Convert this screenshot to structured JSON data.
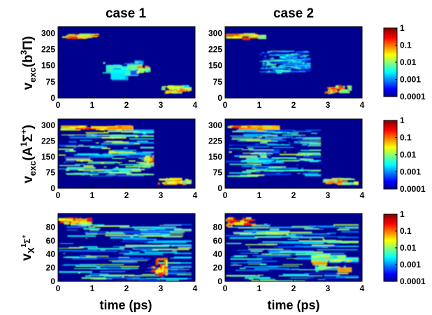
{
  "columns": [
    "case 1",
    "case 2"
  ],
  "xlabel": "time (ps)",
  "rows": [
    {
      "ylabel": {
        "main": "v",
        "sub": "exc",
        "paren_open": "(b",
        "sup": "3",
        "sym": "Π",
        "paren_close": ")"
      }
    },
    {
      "ylabel": {
        "main": "v",
        "sub": "exc",
        "paren_open": "(A",
        "sup": "1",
        "sym": "Σ",
        "sup2": "+",
        "paren_close": ")"
      }
    },
    {
      "ylabel": {
        "main": "v",
        "sub": "X",
        "sup": "1",
        "sym": "Σ",
        "sup2": "+"
      }
    }
  ],
  "colorbar": {
    "scale": "log",
    "colormap": "jet",
    "ticks": [
      "1",
      "0.1",
      "0.01",
      "0.001",
      "0.0001"
    ],
    "range": [
      0.0001,
      1
    ]
  },
  "chart_data": [
    {
      "type": "heatmap",
      "panel": "b3Pi case 1",
      "title": "case 1",
      "xlabel": "",
      "ylabel": "vexc(b3Π)",
      "xlim": [
        0,
        4
      ],
      "ylim": [
        0,
        330
      ],
      "xticks": [
        0,
        1,
        2,
        3,
        4
      ],
      "yticks": [
        0,
        75,
        150,
        225,
        300
      ],
      "features": [
        {
          "t": [
            0,
            1.2
          ],
          "v": [
            280,
            300
          ],
          "intensity": 0.05
        },
        {
          "t": [
            1.2,
            2.5
          ],
          "v": [
            100,
            175
          ],
          "intensity": 0.003
        },
        {
          "t": [
            2.3,
            2.7
          ],
          "v": [
            125,
            150
          ],
          "intensity": 0.03
        },
        {
          "t": [
            3.0,
            3.9
          ],
          "v": [
            30,
            60
          ],
          "intensity": 0.03
        }
      ]
    },
    {
      "type": "heatmap",
      "panel": "b3Pi case 2",
      "title": "case 2",
      "xlabel": "",
      "ylabel": "",
      "xlim": [
        0,
        4
      ],
      "ylim": [
        0,
        330
      ],
      "xticks": [
        0,
        1,
        2,
        3,
        4
      ],
      "yticks": [
        0,
        75,
        150,
        225,
        300
      ],
      "features": [
        {
          "t": [
            0,
            1.2
          ],
          "v": [
            280,
            300
          ],
          "intensity": 0.05
        },
        {
          "t": [
            1.0,
            2.5
          ],
          "v": [
            120,
            220
          ],
          "intensity": 0.002
        },
        {
          "t": [
            2.9,
            3.7
          ],
          "v": [
            30,
            60
          ],
          "intensity": 0.05
        }
      ]
    },
    {
      "type": "heatmap",
      "panel": "A1Sigma+ case 1",
      "title": "",
      "xlabel": "",
      "ylabel": "vexc(A1Σ+)",
      "xlim": [
        0,
        4
      ],
      "ylim": [
        0,
        330
      ],
      "xticks": [
        0,
        1,
        2,
        3,
        4
      ],
      "yticks": [
        0,
        75,
        150,
        225,
        300
      ],
      "features": [
        {
          "t": [
            0,
            2.2
          ],
          "v": [
            280,
            300
          ],
          "intensity": 0.1
        },
        {
          "t": [
            0,
            2.8
          ],
          "v": [
            60,
            280
          ],
          "intensity": 0.005
        },
        {
          "t": [
            2.5,
            2.8
          ],
          "v": [
            120,
            160
          ],
          "intensity": 0.05
        },
        {
          "t": [
            2.9,
            3.9
          ],
          "v": [
            25,
            50
          ],
          "intensity": 0.05
        }
      ]
    },
    {
      "type": "heatmap",
      "panel": "A1Sigma+ case 2",
      "title": "",
      "xlabel": "",
      "ylabel": "",
      "xlim": [
        0,
        4
      ],
      "ylim": [
        0,
        330
      ],
      "xticks": [
        0,
        1,
        2,
        3,
        4
      ],
      "yticks": [
        0,
        75,
        150,
        225,
        300
      ],
      "features": [
        {
          "t": [
            0,
            1.6
          ],
          "v": [
            280,
            300
          ],
          "intensity": 0.1
        },
        {
          "t": [
            0,
            2.8
          ],
          "v": [
            60,
            280
          ],
          "intensity": 0.004
        },
        {
          "t": [
            2.8,
            3.9
          ],
          "v": [
            25,
            50
          ],
          "intensity": 0.05
        }
      ]
    },
    {
      "type": "heatmap",
      "panel": "X1Sigma+ case 1",
      "title": "",
      "xlabel": "time (ps)",
      "ylabel": "vX1Σ+",
      "xlim": [
        0,
        4
      ],
      "ylim": [
        0,
        100
      ],
      "xticks": [
        0,
        1,
        2,
        3,
        4
      ],
      "yticks": [
        0,
        20,
        40,
        60,
        80
      ],
      "features": [
        {
          "t": [
            0,
            1.0
          ],
          "v": [
            85,
            95
          ],
          "intensity": 0.1
        },
        {
          "t": [
            0,
            3.9
          ],
          "v": [
            0,
            85
          ],
          "intensity": 0.004
        },
        {
          "t": [
            2.7,
            3.2
          ],
          "v": [
            10,
            35
          ],
          "intensity": 0.1
        }
      ]
    },
    {
      "type": "heatmap",
      "panel": "X1Sigma+ case 2",
      "title": "",
      "xlabel": "time (ps)",
      "ylabel": "",
      "xlim": [
        0,
        4
      ],
      "ylim": [
        0,
        100
      ],
      "xticks": [
        0,
        1,
        2,
        3,
        4
      ],
      "yticks": [
        0,
        20,
        40,
        60,
        80
      ],
      "features": [
        {
          "t": [
            0,
            0.9
          ],
          "v": [
            85,
            95
          ],
          "intensity": 0.1
        },
        {
          "t": [
            0,
            3.9
          ],
          "v": [
            0,
            85
          ],
          "intensity": 0.004
        },
        {
          "t": [
            2.5,
            3.7
          ],
          "v": [
            20,
            40
          ],
          "intensity": 0.02
        }
      ]
    }
  ]
}
